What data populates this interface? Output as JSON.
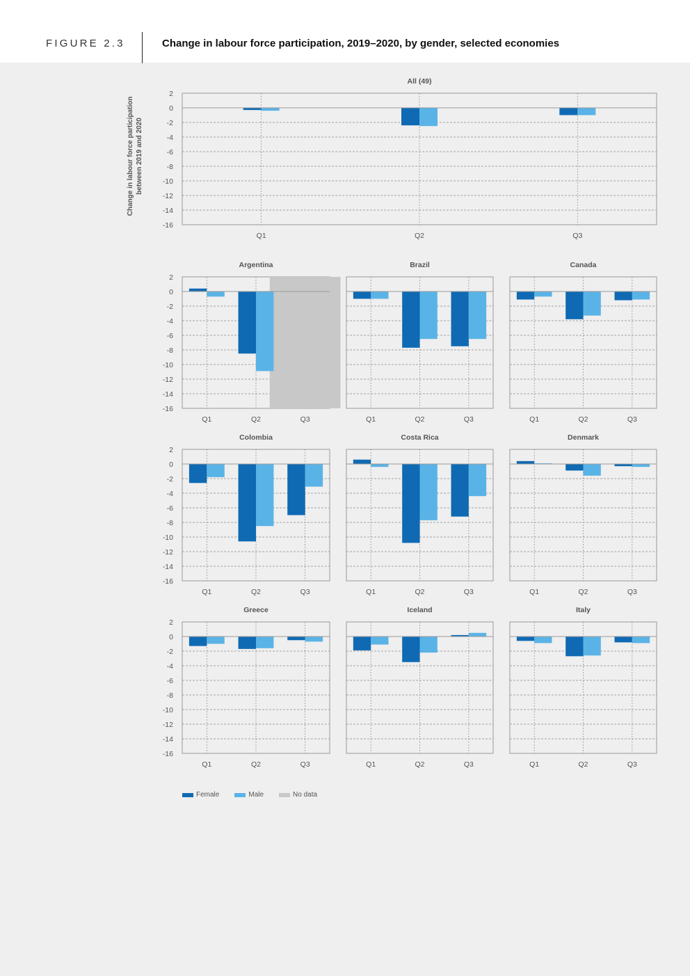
{
  "header": {
    "figure_label": "FIGURE 2.3",
    "title": "Change in labour force participation, 2019–2020, by gender, selected economies"
  },
  "legend": {
    "female": "Female",
    "male": "Male",
    "nodata": "No data"
  },
  "colors": {
    "female": "#0f6ab3",
    "male": "#5ab3e6",
    "nodata": "#c8c8c8"
  },
  "chart_data": [
    {
      "type": "bar",
      "title": "All (49)",
      "ylabel": "Change in labour force participation between 2019 and 2020",
      "categories": [
        "Q1",
        "Q2",
        "Q3"
      ],
      "yticks": [
        2,
        0,
        -2,
        -4,
        -6,
        -8,
        -10,
        -12,
        -14,
        -16
      ],
      "ylim": [
        -16,
        2
      ],
      "series": [
        {
          "name": "Female",
          "values": [
            -0.3,
            -2.4,
            -1.0
          ]
        },
        {
          "name": "Male",
          "values": [
            -0.4,
            -2.5,
            -1.0
          ]
        }
      ]
    },
    {
      "type": "bar",
      "title": "Argentina",
      "categories": [
        "Q1",
        "Q2",
        "Q3"
      ],
      "yticks": [
        2,
        0,
        -2,
        -4,
        -6,
        -8,
        -10,
        -12,
        -14,
        -16
      ],
      "ylim": [
        -16,
        2
      ],
      "nodata": [
        2
      ],
      "series": [
        {
          "name": "Female",
          "values": [
            0.4,
            -8.5,
            null
          ]
        },
        {
          "name": "Male",
          "values": [
            -0.7,
            -10.9,
            null
          ]
        }
      ]
    },
    {
      "type": "bar",
      "title": "Brazil",
      "categories": [
        "Q1",
        "Q2",
        "Q3"
      ],
      "ylim": [
        -16,
        2
      ],
      "series": [
        {
          "name": "Female",
          "values": [
            -1.0,
            -7.7,
            -7.5
          ]
        },
        {
          "name": "Male",
          "values": [
            -1.0,
            -6.5,
            -6.5
          ]
        }
      ]
    },
    {
      "type": "bar",
      "title": "Canada",
      "categories": [
        "Q1",
        "Q2",
        "Q3"
      ],
      "ylim": [
        -16,
        2
      ],
      "series": [
        {
          "name": "Female",
          "values": [
            -1.1,
            -3.8,
            -1.2
          ]
        },
        {
          "name": "Male",
          "values": [
            -0.7,
            -3.3,
            -1.1
          ]
        }
      ]
    },
    {
      "type": "bar",
      "title": "Colombia",
      "categories": [
        "Q1",
        "Q2",
        "Q3"
      ],
      "yticks": [
        2,
        0,
        -2,
        -4,
        -6,
        -8,
        -10,
        -12,
        -14,
        -16
      ],
      "ylim": [
        -16,
        2
      ],
      "series": [
        {
          "name": "Female",
          "values": [
            -2.6,
            -10.6,
            -7.0
          ]
        },
        {
          "name": "Male",
          "values": [
            -1.8,
            -8.5,
            -3.1
          ]
        }
      ]
    },
    {
      "type": "bar",
      "title": "Costa Rica",
      "categories": [
        "Q1",
        "Q2",
        "Q3"
      ],
      "ylim": [
        -16,
        2
      ],
      "series": [
        {
          "name": "Female",
          "values": [
            0.6,
            -10.8,
            -7.2
          ]
        },
        {
          "name": "Male",
          "values": [
            -0.4,
            -7.7,
            -4.4
          ]
        }
      ]
    },
    {
      "type": "bar",
      "title": "Denmark",
      "categories": [
        "Q1",
        "Q2",
        "Q3"
      ],
      "ylim": [
        -16,
        2
      ],
      "series": [
        {
          "name": "Female",
          "values": [
            0.4,
            -0.9,
            -0.3
          ]
        },
        {
          "name": "Male",
          "values": [
            0.1,
            -1.6,
            -0.4
          ]
        }
      ]
    },
    {
      "type": "bar",
      "title": "Greece",
      "categories": [
        "Q1",
        "Q2",
        "Q3"
      ],
      "yticks": [
        2,
        0,
        -2,
        -4,
        -6,
        -8,
        -10,
        -12,
        -14,
        -16
      ],
      "ylim": [
        -16,
        2
      ],
      "series": [
        {
          "name": "Female",
          "values": [
            -1.3,
            -1.7,
            -0.5
          ]
        },
        {
          "name": "Male",
          "values": [
            -1.0,
            -1.6,
            -0.7
          ]
        }
      ]
    },
    {
      "type": "bar",
      "title": "Iceland",
      "categories": [
        "Q1",
        "Q2",
        "Q3"
      ],
      "ylim": [
        -16,
        2
      ],
      "series": [
        {
          "name": "Female",
          "values": [
            -1.9,
            -3.5,
            0.2
          ]
        },
        {
          "name": "Male",
          "values": [
            -1.1,
            -2.2,
            0.5
          ]
        }
      ]
    },
    {
      "type": "bar",
      "title": "Italy",
      "categories": [
        "Q1",
        "Q2",
        "Q3"
      ],
      "ylim": [
        -16,
        2
      ],
      "series": [
        {
          "name": "Female",
          "values": [
            -0.6,
            -2.7,
            -0.8
          ]
        },
        {
          "name": "Male",
          "values": [
            -0.9,
            -2.6,
            -0.9
          ]
        }
      ]
    }
  ]
}
